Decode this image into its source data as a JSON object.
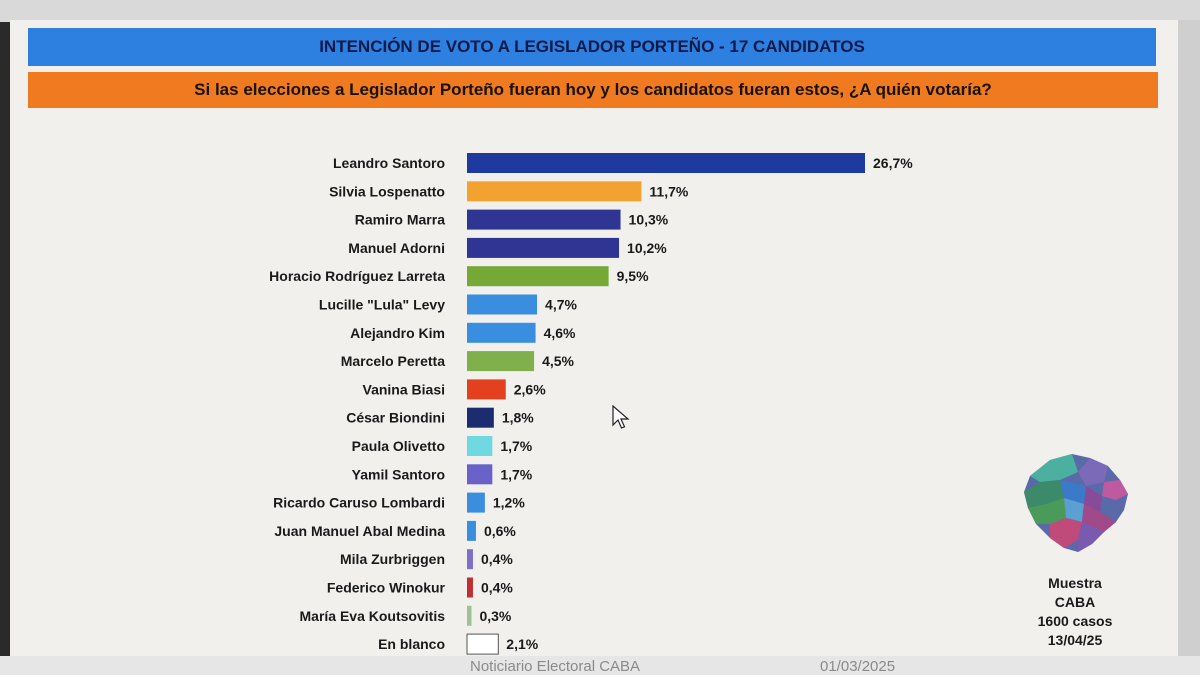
{
  "title": "INTENCIÓN DE VOTO A LEGISLADOR PORTEÑO - 17 CANDIDATOS",
  "question": "Si las elecciones a Legislador Porteño fueran hoy y los candidatos fueran estos, ¿A quién votaría?",
  "sample": {
    "line1": "Muestra",
    "line2": "CABA",
    "line3": "1600 casos",
    "line4": "13/04/25"
  },
  "footer": {
    "left": "Noticiario Electoral CABA",
    "right": "01/03/2025"
  },
  "icons": [
    "caba-map-icon",
    "mouse-cursor-icon"
  ],
  "chart_data": {
    "type": "bar",
    "orientation": "horizontal",
    "categories": [
      "Leandro Santoro",
      "Silvia Lospenatto",
      "Ramiro Marra",
      "Manuel Adorni",
      "Horacio Rodríguez Larreta",
      "Lucille \"Lula\" Levy",
      "Alejandro Kim",
      "Marcelo Peretta",
      "Vanina Biasi",
      "César Biondini",
      "Paula Olivetto",
      "Yamil Santoro",
      "Ricardo Caruso Lombardi",
      "Juan Manuel Abal Medina",
      "Mila Zurbriggen",
      "Federico Winokur",
      "María Eva Koutsovitis",
      "En blanco"
    ],
    "values": [
      26.7,
      11.7,
      10.3,
      10.2,
      9.5,
      4.7,
      4.6,
      4.5,
      2.6,
      1.8,
      1.7,
      1.7,
      1.2,
      0.6,
      0.4,
      0.4,
      0.3,
      2.1
    ],
    "labels": [
      "26,7%",
      "11,7%",
      "10,3%",
      "10,2%",
      "9,5%",
      "4,7%",
      "4,6%",
      "4,5%",
      "2,6%",
      "1,8%",
      "1,7%",
      "1,7%",
      "1,2%",
      "0,6%",
      "0,4%",
      "0,4%",
      "0,3%",
      "2,1%"
    ],
    "colors": [
      "#1f3a9e",
      "#f2a22e",
      "#2e3592",
      "#2e3592",
      "#76a835",
      "#3a8ee0",
      "#3a8ee0",
      "#7fb04c",
      "#e2401e",
      "#1b2d6e",
      "#6fd8e0",
      "#6a62c8",
      "#3a8ee0",
      "#3a8ee0",
      "#7e70c8",
      "#c03030",
      "#9fc090",
      "#ffffff"
    ],
    "outlined": [
      false,
      false,
      false,
      false,
      false,
      false,
      false,
      false,
      false,
      false,
      false,
      false,
      false,
      false,
      false,
      false,
      false,
      true
    ],
    "title": "",
    "xlabel": "",
    "ylabel": "",
    "xlim": [
      0,
      26.7
    ],
    "grid": false,
    "legend": "none"
  }
}
